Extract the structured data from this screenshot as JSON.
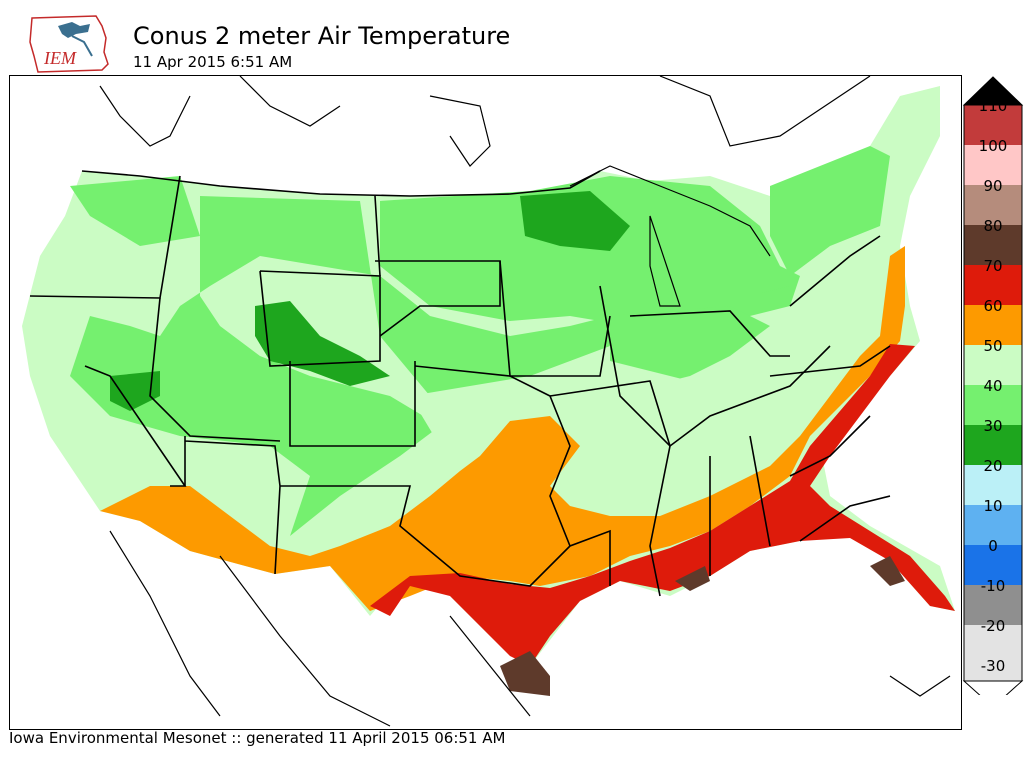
{
  "header": {
    "logo_text": "IEM",
    "title": "Conus 2 meter Air Temperature",
    "subtitle": "11 Apr 2015 6:51 AM"
  },
  "map": {
    "variable": "2 meter Air Temperature",
    "region": "Conus"
  },
  "colorbar": {
    "levels": [
      {
        "label": "110",
        "color": "#c23b3b"
      },
      {
        "label": "100",
        "color": "#ffc7c7"
      },
      {
        "label": "90",
        "color": "#b58c7c"
      },
      {
        "label": "80",
        "color": "#5e3a2b"
      },
      {
        "label": "70",
        "color": "#de1b0b"
      },
      {
        "label": "60",
        "color": "#fd9a00"
      },
      {
        "label": "50",
        "color": "#cbfcc4"
      },
      {
        "label": "40",
        "color": "#75f06f"
      },
      {
        "label": "30",
        "color": "#1ea61e"
      },
      {
        "label": "20",
        "color": "#bbf0f7"
      },
      {
        "label": "10",
        "color": "#5eb1f1"
      },
      {
        "label": "0",
        "color": "#1a73e8"
      },
      {
        "label": "-10",
        "color": "#8f8f8f"
      },
      {
        "label": "-20",
        "color": "#e3e3e3"
      },
      {
        "label": "-30",
        "color": "#e3e3e3"
      }
    ],
    "top_extend_color": "#000000",
    "bottom_extend_color": "#ffffff"
  },
  "footer": {
    "text": "Iowa Environmental Mesonet :: generated 11 April 2015 06:51 AM"
  }
}
